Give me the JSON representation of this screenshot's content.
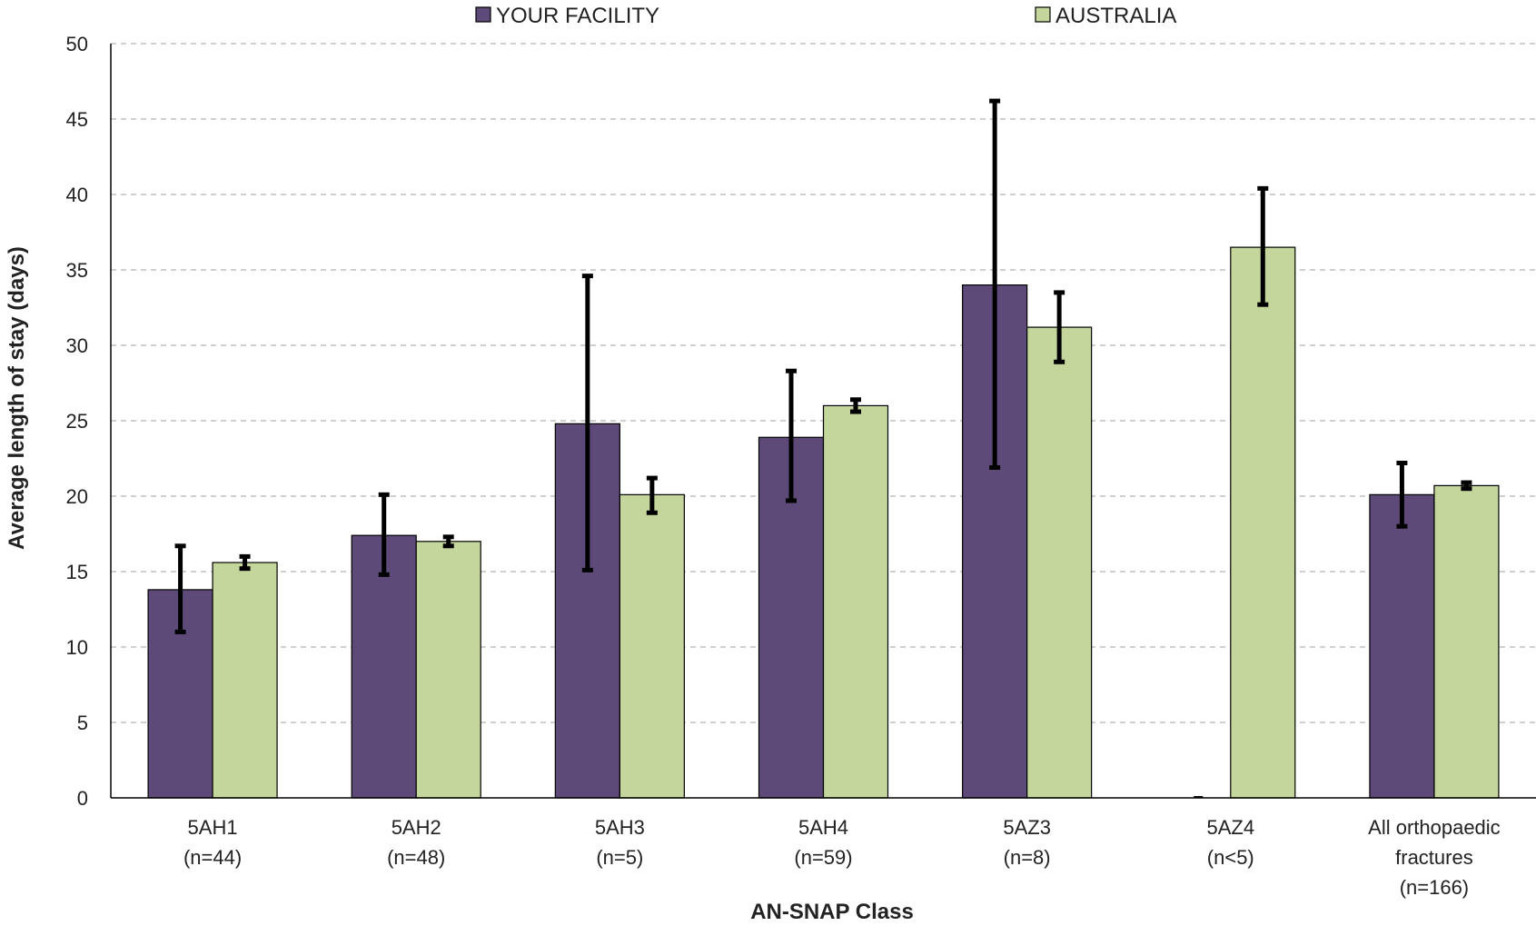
{
  "chart_data": {
    "type": "bar",
    "xlabel": "AN-SNAP Class",
    "ylabel": "Average length of stay (days)",
    "ylim": [
      0,
      50
    ],
    "ytick_step": 5,
    "grid": "horizontal-dashed",
    "legend_position": "top",
    "categories": [
      [
        "5AH1",
        "(n=44)"
      ],
      [
        "5AH2",
        "(n=48)"
      ],
      [
        "5AH3",
        "(n=5)"
      ],
      [
        "5AH4",
        "(n=59)"
      ],
      [
        "5AZ3",
        "(n=8)"
      ],
      [
        "5AZ4",
        "(n<5)"
      ],
      [
        "All orthopaedic",
        "fractures",
        "(n=166)"
      ]
    ],
    "series": [
      {
        "name": "YOUR FACILITY",
        "color": "#5e4a78",
        "values": [
          13.8,
          17.4,
          24.8,
          23.9,
          34.0,
          0,
          20.1
        ],
        "error_low": [
          11.0,
          14.8,
          15.1,
          19.7,
          21.9,
          null,
          18.0
        ],
        "error_high": [
          16.7,
          20.1,
          34.6,
          28.3,
          46.2,
          null,
          22.2
        ]
      },
      {
        "name": "AUSTRALIA",
        "color": "#c4d69b",
        "values": [
          15.6,
          17.0,
          20.1,
          26.0,
          31.2,
          36.5,
          20.7
        ],
        "error_low": [
          15.2,
          16.7,
          18.9,
          25.6,
          28.9,
          32.7,
          20.5
        ],
        "error_high": [
          16.0,
          17.3,
          21.2,
          26.4,
          33.5,
          40.4,
          20.9
        ]
      }
    ]
  }
}
